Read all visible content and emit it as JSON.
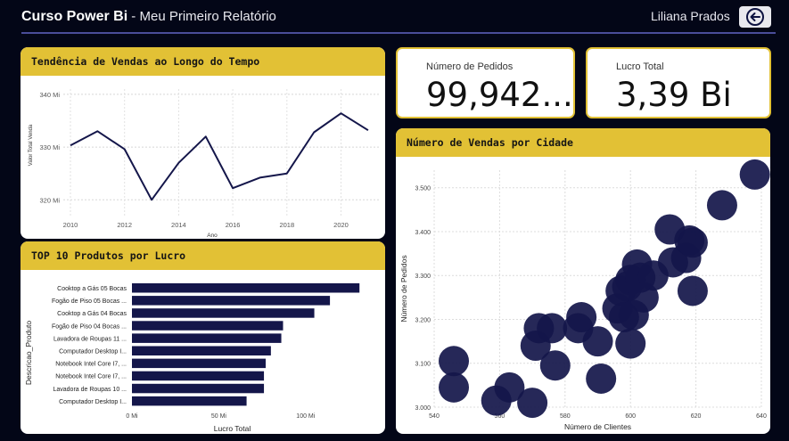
{
  "header": {
    "app_title": "Curso Power Bi",
    "separator": " - ",
    "report_title": "Meu Primeiro Relatório",
    "user_name": "Liliana Prados",
    "back_icon": "back-arrow-circle-icon"
  },
  "cards": {
    "orders": {
      "label": "Número de Pedidos",
      "value": "99,942..."
    },
    "profit": {
      "label": "Lucro Total",
      "value": "3,39 Bi"
    }
  },
  "colors": {
    "accent": "#e2c135",
    "series": "#14164a",
    "background": "#030617"
  },
  "chart_data": [
    {
      "id": "trend",
      "type": "line",
      "title": "Tendência de Vendas ao Longo do Tempo",
      "xlabel": "Ano",
      "ylabel": "Valor Total Venda",
      "x": [
        2010,
        2011,
        2012,
        2013,
        2014,
        2015,
        2016,
        2017,
        2018,
        2019,
        2020,
        2021
      ],
      "values": [
        330.3,
        333.0,
        329.6,
        320.0,
        327.0,
        332.0,
        322.2,
        324.2,
        325.0,
        332.8,
        336.4,
        333.2
      ],
      "x_ticks": [
        "2010",
        "2012",
        "2014",
        "2016",
        "2018",
        "2020"
      ],
      "y_ticks": [
        "320 Mi",
        "330 Mi",
        "340 Mi"
      ],
      "ylim": [
        317,
        341
      ],
      "grid": true
    },
    {
      "id": "top10",
      "type": "bar",
      "title": "TOP 10 Produtos por Lucro",
      "xlabel": "Lucro Total",
      "ylabel": "Descricao_Produto",
      "categories": [
        "Cooktop a Gás 05 Bocas",
        "Fogão de Piso 05 Bocas ...",
        "Cooktop a Gás 04 Bocas",
        "Fogão de Piso 04 Bocas ...",
        "Lavadora de Roupas 11 ...",
        "Computador Desktop I...",
        "Notebook Intel Core I7, ...",
        "Notebook Intel Core I7, ...",
        "Lavadora de Roupas 10 ...",
        "Computador Desktop I..."
      ],
      "values": [
        131,
        114,
        105,
        87,
        86,
        80,
        77,
        76,
        76,
        66
      ],
      "x_ticks": [
        "0 Mi",
        "50 Mi",
        "100 Mi"
      ],
      "xlim": [
        0,
        135
      ]
    },
    {
      "id": "cities",
      "type": "scatter",
      "title": "Número de Vendas por Cidade",
      "xlabel": "Número de Clientes",
      "ylabel": "Número de Pedidos",
      "x_ticks": [
        "540",
        "560",
        "580",
        "600",
        "620",
        "640"
      ],
      "y_ticks": [
        "3.000",
        "3.100",
        "3.200",
        "3.300",
        "3.400",
        "3.500"
      ],
      "xlim": [
        540,
        640
      ],
      "ylim": [
        3000,
        3540
      ],
      "grid": true,
      "points": [
        [
          546,
          3105
        ],
        [
          546,
          3045
        ],
        [
          559,
          3015
        ],
        [
          563,
          3045
        ],
        [
          570,
          3010
        ],
        [
          571,
          3140
        ],
        [
          572,
          3180
        ],
        [
          576,
          3180
        ],
        [
          577,
          3095
        ],
        [
          584,
          3180
        ],
        [
          585,
          3205
        ],
        [
          590,
          3150
        ],
        [
          591,
          3065
        ],
        [
          596,
          3225
        ],
        [
          597,
          3265
        ],
        [
          598,
          3205
        ],
        [
          599,
          3275
        ],
        [
          600,
          3290
        ],
        [
          600,
          3145
        ],
        [
          601,
          3210
        ],
        [
          602,
          3325
        ],
        [
          603,
          3295
        ],
        [
          604,
          3250
        ],
        [
          607,
          3300
        ],
        [
          612,
          3405
        ],
        [
          613,
          3330
        ],
        [
          617,
          3340
        ],
        [
          618,
          3380
        ],
        [
          619,
          3375
        ],
        [
          619,
          3265
        ],
        [
          628,
          3460
        ],
        [
          638,
          3530
        ]
      ]
    }
  ]
}
